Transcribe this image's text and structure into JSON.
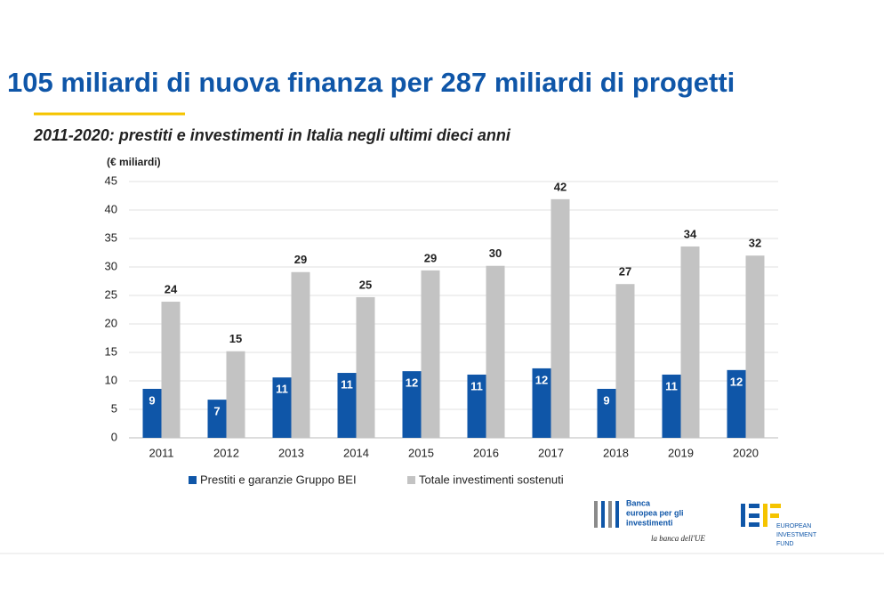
{
  "chart_data": {
    "type": "bar",
    "title": "105 miliardi di nuova finanza per 287 miliardi di progetti",
    "subtitle": "2011-2020: prestiti e investimenti in Italia negli ultimi dieci anni",
    "y_label": "(€ miliardi)",
    "categories": [
      "2011",
      "2012",
      "2013",
      "2014",
      "2015",
      "2016",
      "2017",
      "2018",
      "2019",
      "2020"
    ],
    "series": [
      {
        "name": "Prestiti e garanzie Gruppo BEI",
        "color": "#0f56a8",
        "values": [
          8.6,
          6.7,
          10.6,
          11.4,
          11.7,
          11.1,
          12.2,
          8.6,
          11.1,
          11.9
        ],
        "value_labels": [
          "9",
          "7",
          "11",
          "11",
          "12",
          "11",
          "12",
          "9",
          "11",
          "12"
        ]
      },
      {
        "name": "Totale investimenti sostenuti",
        "color": "#c3c3c3",
        "values": [
          23.9,
          15.2,
          29.1,
          24.7,
          29.4,
          30.2,
          41.9,
          27.0,
          33.6,
          32.0
        ],
        "value_labels": [
          "24",
          "15",
          "29",
          "25",
          "29",
          "30",
          "42",
          "27",
          "34",
          "32"
        ]
      }
    ],
    "ylim": [
      0,
      45
    ],
    "yticks": [
      0,
      5,
      10,
      15,
      20,
      25,
      30,
      35,
      40,
      45
    ],
    "grid": true
  },
  "logos": {
    "eib": {
      "lines": [
        "Banca",
        "europea per gli",
        "investimenti"
      ],
      "motto": "la banca dell'UE"
    },
    "eif": {
      "lines": [
        "EUROPEAN",
        "INVESTMENT",
        "FUND"
      ]
    }
  }
}
